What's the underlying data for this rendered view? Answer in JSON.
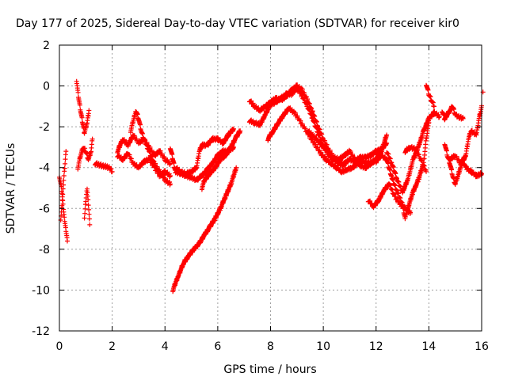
{
  "chart_data": {
    "type": "scatter",
    "title": "Day 177 of 2025, Sidereal Day-to-day VTEC variation (SDTVAR) for receiver kir0",
    "xlabel": "GPS time / hours",
    "ylabel": "SDTVAR / TECUs",
    "xlim": [
      0,
      16
    ],
    "ylim": [
      -12,
      2
    ],
    "xticks": [
      0,
      2,
      4,
      6,
      8,
      10,
      12,
      14,
      16
    ],
    "yticks": [
      -12,
      -10,
      -8,
      -6,
      -4,
      -2,
      0,
      2
    ],
    "xtick_labels": [
      "0",
      "2",
      "4",
      "6",
      "8",
      "10",
      "12",
      "14",
      "16"
    ],
    "ytick_labels": [
      "-12",
      "-10",
      "-8",
      "-6",
      "-4",
      "-2",
      "0",
      "2"
    ],
    "grid": true,
    "marker": "plus",
    "color": "#ff0000",
    "series": [
      {
        "name": "SDTVAR",
        "traces": [
          [
            [
              0.0,
              -4.4
            ],
            [
              0.1,
              -5.2
            ],
            [
              0.15,
              -6.0
            ],
            [
              0.2,
              -6.6
            ],
            [
              0.25,
              -7.1
            ],
            [
              0.3,
              -7.6
            ]
          ],
          [
            [
              0.05,
              -6.5
            ],
            [
              0.1,
              -5.8
            ],
            [
              0.15,
              -4.8
            ],
            [
              0.2,
              -4.0
            ],
            [
              0.25,
              -3.2
            ]
          ],
          [
            [
              0.65,
              0.3
            ],
            [
              0.72,
              -0.5
            ],
            [
              0.8,
              -1.2
            ],
            [
              0.88,
              -1.8
            ],
            [
              0.95,
              -2.3
            ],
            [
              1.05,
              -1.8
            ],
            [
              1.12,
              -1.2
            ]
          ],
          [
            [
              0.7,
              -4.0
            ],
            [
              0.8,
              -3.4
            ],
            [
              0.9,
              -3.0
            ],
            [
              1.0,
              -3.2
            ],
            [
              1.1,
              -3.6
            ],
            [
              1.2,
              -3.2
            ],
            [
              1.25,
              -2.6
            ]
          ],
          [
            [
              0.95,
              -6.4
            ],
            [
              1.0,
              -5.6
            ],
            [
              1.05,
              -5.0
            ],
            [
              1.1,
              -5.8
            ],
            [
              1.15,
              -6.8
            ]
          ],
          [
            [
              1.35,
              -3.8
            ],
            [
              1.6,
              -3.9
            ],
            [
              1.9,
              -4.0
            ],
            [
              2.0,
              -4.2
            ]
          ],
          [
            [
              2.2,
              -3.2
            ],
            [
              2.4,
              -2.6
            ],
            [
              2.6,
              -2.9
            ],
            [
              2.8,
              -2.4
            ],
            [
              3.0,
              -2.8
            ],
            [
              3.2,
              -2.6
            ],
            [
              3.4,
              -3.0
            ],
            [
              3.6,
              -3.4
            ],
            [
              3.8,
              -3.2
            ],
            [
              4.0,
              -3.6
            ],
            [
              4.2,
              -3.8
            ]
          ],
          [
            [
              2.2,
              -3.4
            ],
            [
              2.4,
              -3.6
            ],
            [
              2.6,
              -3.3
            ],
            [
              2.8,
              -3.8
            ],
            [
              3.0,
              -4.0
            ],
            [
              3.2,
              -3.7
            ],
            [
              3.4,
              -3.6
            ],
            [
              3.6,
              -4.0
            ],
            [
              3.8,
              -4.4
            ],
            [
              4.0,
              -4.2
            ],
            [
              4.2,
              -4.4
            ]
          ],
          [
            [
              2.7,
              -2.2
            ],
            [
              2.9,
              -1.2
            ],
            [
              3.0,
              -1.6
            ],
            [
              3.1,
              -2.2
            ],
            [
              3.2,
              -2.6
            ],
            [
              3.4,
              -3.2
            ],
            [
              3.6,
              -3.8
            ],
            [
              3.8,
              -4.2
            ],
            [
              4.0,
              -4.6
            ],
            [
              4.2,
              -4.8
            ]
          ],
          [
            [
              4.2,
              -3.0
            ],
            [
              4.4,
              -4.2
            ],
            [
              4.6,
              -4.3
            ],
            [
              4.8,
              -4.4
            ],
            [
              5.0,
              -4.5
            ],
            [
              5.2,
              -4.6
            ],
            [
              5.4,
              -4.4
            ],
            [
              5.6,
              -4.1
            ],
            [
              5.8,
              -3.8
            ],
            [
              6.0,
              -3.4
            ],
            [
              6.2,
              -3.2
            ],
            [
              6.4,
              -3.2
            ],
            [
              6.6,
              -3.0
            ]
          ],
          [
            [
              4.4,
              -4.0
            ],
            [
              4.6,
              -4.2
            ],
            [
              4.8,
              -4.3
            ],
            [
              5.0,
              -4.2
            ],
            [
              5.2,
              -4.0
            ],
            [
              5.3,
              -3.2
            ],
            [
              5.4,
              -2.9
            ],
            [
              5.6,
              -2.9
            ],
            [
              5.8,
              -2.6
            ],
            [
              6.0,
              -2.6
            ],
            [
              6.2,
              -2.8
            ],
            [
              6.4,
              -2.4
            ],
            [
              6.6,
              -2.1
            ]
          ],
          [
            [
              5.4,
              -5.0
            ],
            [
              5.5,
              -4.6
            ],
            [
              5.7,
              -4.3
            ],
            [
              5.9,
              -4.0
            ],
            [
              6.1,
              -3.6
            ],
            [
              6.3,
              -3.4
            ],
            [
              6.5,
              -3.0
            ],
            [
              6.7,
              -2.5
            ],
            [
              6.85,
              -2.2
            ]
          ],
          [
            [
              4.3,
              -10.0
            ],
            [
              4.5,
              -9.3
            ],
            [
              4.7,
              -8.7
            ],
            [
              4.9,
              -8.3
            ],
            [
              5.1,
              -8.0
            ],
            [
              5.3,
              -7.7
            ],
            [
              5.5,
              -7.3
            ],
            [
              5.7,
              -6.9
            ],
            [
              5.9,
              -6.5
            ],
            [
              6.1,
              -6.0
            ],
            [
              6.3,
              -5.4
            ],
            [
              6.5,
              -4.8
            ],
            [
              6.7,
              -4.0
            ]
          ],
          [
            [
              7.2,
              -1.7
            ],
            [
              7.4,
              -1.8
            ],
            [
              7.6,
              -1.9
            ],
            [
              7.8,
              -1.4
            ],
            [
              8.0,
              -0.9
            ],
            [
              8.2,
              -0.8
            ],
            [
              8.4,
              -0.6
            ],
            [
              8.6,
              -0.4
            ],
            [
              8.8,
              -0.4
            ],
            [
              9.0,
              -0.1
            ],
            [
              9.2,
              -0.5
            ],
            [
              9.4,
              -1.0
            ],
            [
              9.6,
              -1.6
            ],
            [
              9.8,
              -2.3
            ],
            [
              10.0,
              -2.9
            ],
            [
              10.2,
              -3.4
            ],
            [
              10.4,
              -3.6
            ],
            [
              10.6,
              -3.8
            ],
            [
              10.8,
              -3.8
            ],
            [
              11.0,
              -3.6
            ],
            [
              11.2,
              -3.7
            ],
            [
              11.4,
              -3.5
            ],
            [
              11.6,
              -3.5
            ],
            [
              11.8,
              -3.4
            ],
            [
              12.0,
              -3.2
            ],
            [
              12.2,
              -3.1
            ],
            [
              12.4,
              -2.8
            ]
          ],
          [
            [
              7.2,
              -0.7
            ],
            [
              7.4,
              -1.0
            ],
            [
              7.6,
              -1.2
            ],
            [
              7.8,
              -1.0
            ],
            [
              8.0,
              -0.8
            ],
            [
              8.2,
              -0.6
            ],
            [
              8.4,
              -0.7
            ],
            [
              8.6,
              -0.5
            ],
            [
              8.8,
              -0.2
            ],
            [
              9.0,
              0.0
            ],
            [
              9.2,
              -0.2
            ],
            [
              9.4,
              -0.7
            ],
            [
              9.6,
              -1.3
            ],
            [
              9.8,
              -2.0
            ],
            [
              10.0,
              -2.6
            ],
            [
              10.2,
              -3.1
            ],
            [
              10.4,
              -3.5
            ],
            [
              10.6,
              -3.6
            ],
            [
              10.8,
              -3.4
            ],
            [
              11.0,
              -3.2
            ],
            [
              11.2,
              -3.6
            ],
            [
              11.4,
              -3.9
            ],
            [
              11.6,
              -4.0
            ],
            [
              11.8,
              -3.8
            ],
            [
              12.0,
              -3.6
            ],
            [
              12.2,
              -3.2
            ],
            [
              12.4,
              -2.4
            ]
          ],
          [
            [
              7.9,
              -2.6
            ],
            [
              8.1,
              -2.2
            ],
            [
              8.3,
              -1.8
            ],
            [
              8.5,
              -1.4
            ],
            [
              8.7,
              -1.1
            ],
            [
              8.9,
              -1.3
            ],
            [
              9.1,
              -1.7
            ],
            [
              9.3,
              -2.1
            ],
            [
              9.5,
              -2.5
            ],
            [
              9.7,
              -2.9
            ],
            [
              9.9,
              -3.3
            ],
            [
              10.1,
              -3.6
            ],
            [
              10.3,
              -3.8
            ],
            [
              10.5,
              -4.0
            ],
            [
              10.7,
              -4.2
            ],
            [
              10.9,
              -4.1
            ],
            [
              11.1,
              -4.0
            ],
            [
              11.3,
              -3.8
            ],
            [
              11.5,
              -3.7
            ],
            [
              11.7,
              -3.8
            ],
            [
              11.9,
              -3.7
            ],
            [
              12.1,
              -3.5
            ]
          ],
          [
            [
              9.4,
              -2.2
            ],
            [
              9.6,
              -2.4
            ],
            [
              9.8,
              -2.7
            ],
            [
              10.0,
              -3.0
            ],
            [
              10.2,
              -3.3
            ],
            [
              10.4,
              -3.6
            ],
            [
              10.6,
              -3.8
            ],
            [
              10.8,
              -3.9
            ]
          ],
          [
            [
              11.7,
              -5.6
            ],
            [
              11.9,
              -5.9
            ],
            [
              12.1,
              -5.6
            ],
            [
              12.3,
              -5.1
            ],
            [
              12.5,
              -4.8
            ],
            [
              12.7,
              -5.4
            ],
            [
              12.9,
              -5.8
            ],
            [
              13.1,
              -6.0
            ],
            [
              13.3,
              -6.2
            ]
          ],
          [
            [
              12.0,
              -3.7
            ],
            [
              12.2,
              -3.4
            ],
            [
              12.4,
              -3.6
            ],
            [
              12.6,
              -4.5
            ],
            [
              12.8,
              -5.2
            ],
            [
              13.0,
              -5.8
            ],
            [
              13.1,
              -6.5
            ],
            [
              13.2,
              -6.0
            ],
            [
              13.4,
              -5.2
            ],
            [
              13.6,
              -4.6
            ],
            [
              13.8,
              -3.8
            ],
            [
              13.9,
              -2.6
            ],
            [
              14.0,
              -1.8
            ]
          ],
          [
            [
              12.4,
              -3.2
            ],
            [
              12.6,
              -3.8
            ],
            [
              12.8,
              -4.6
            ],
            [
              13.0,
              -5.2
            ],
            [
              13.2,
              -4.6
            ],
            [
              13.4,
              -3.6
            ],
            [
              13.6,
              -3.0
            ],
            [
              13.8,
              -2.2
            ],
            [
              14.0,
              -1.6
            ],
            [
              14.2,
              -1.3
            ],
            [
              14.4,
              -1.5
            ]
          ],
          [
            [
              13.1,
              -3.2
            ],
            [
              13.3,
              -3.0
            ],
            [
              13.5,
              -3.1
            ],
            [
              13.7,
              -3.6
            ],
            [
              13.9,
              -4.2
            ]
          ],
          [
            [
              13.9,
              0.1
            ],
            [
              14.0,
              -0.4
            ],
            [
              14.1,
              -0.7
            ],
            [
              14.2,
              -1.0
            ]
          ],
          [
            [
              14.5,
              -1.2
            ],
            [
              14.6,
              -1.6
            ],
            [
              14.8,
              -1.2
            ],
            [
              14.9,
              -1.0
            ],
            [
              15.0,
              -1.4
            ],
            [
              15.1,
              -1.5
            ],
            [
              15.3,
              -1.6
            ]
          ],
          [
            [
              14.6,
              -2.8
            ],
            [
              14.7,
              -3.4
            ],
            [
              14.8,
              -3.8
            ],
            [
              14.9,
              -4.4
            ],
            [
              15.0,
              -4.8
            ],
            [
              15.1,
              -4.4
            ],
            [
              15.2,
              -4.0
            ],
            [
              15.3,
              -3.6
            ],
            [
              15.4,
              -4.0
            ],
            [
              15.6,
              -4.2
            ],
            [
              15.8,
              -4.4
            ],
            [
              16.0,
              -4.3
            ]
          ],
          [
            [
              14.8,
              -3.6
            ],
            [
              15.0,
              -3.4
            ],
            [
              15.2,
              -3.8
            ],
            [
              15.4,
              -3.4
            ],
            [
              15.5,
              -2.6
            ],
            [
              15.6,
              -2.2
            ],
            [
              15.8,
              -2.4
            ],
            [
              15.9,
              -1.6
            ],
            [
              16.0,
              -1.0
            ],
            [
              16.05,
              -0.3
            ]
          ]
        ]
      }
    ]
  }
}
